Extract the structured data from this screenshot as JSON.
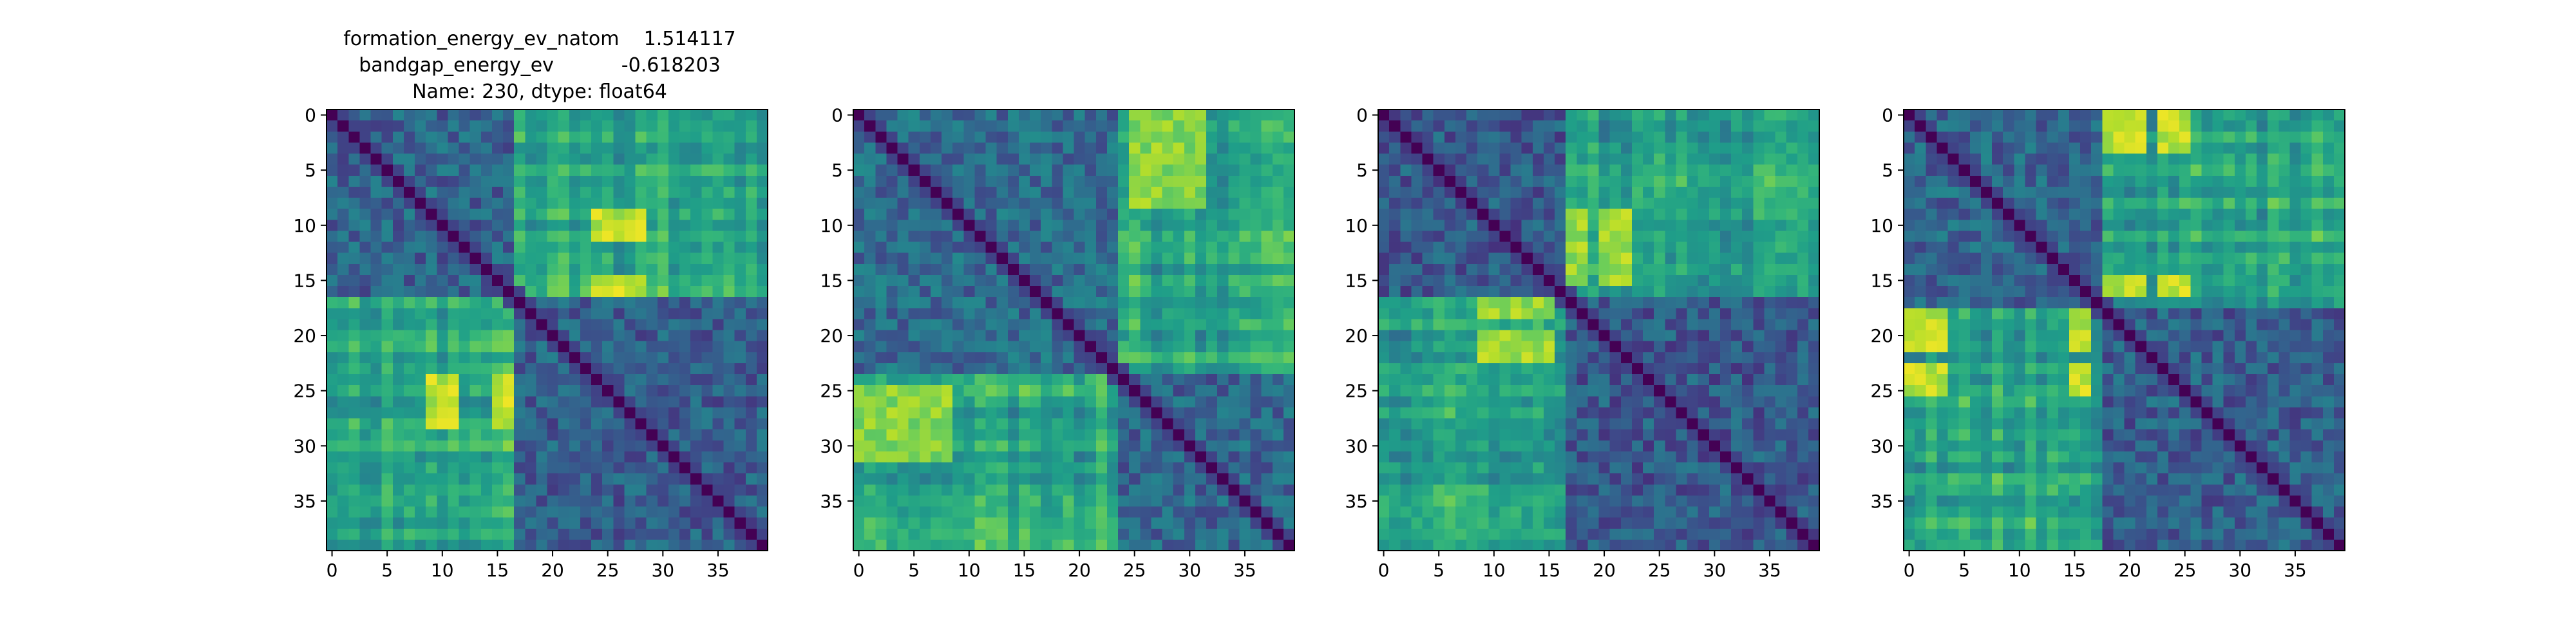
{
  "title_lines": [
    "formation_energy_ev_natom    1.514117",
    "bandgap_energy_ev           -0.618203",
    "Name: 230, dtype: float64"
  ],
  "colormap": {
    "name": "viridis",
    "stops": [
      "#440154",
      "#482878",
      "#3e4989",
      "#31688e",
      "#26828e",
      "#1f9e89",
      "#35b779",
      "#6ece58",
      "#b5de2b",
      "#fde725"
    ]
  },
  "chart_data": [
    {
      "type": "heatmap",
      "size": 40,
      "xticks": [
        0,
        5,
        10,
        15,
        20,
        25,
        30,
        35
      ],
      "yticks": [
        0,
        5,
        10,
        15,
        20,
        25,
        30,
        35
      ],
      "xlim": [
        -0.5,
        39.5
      ],
      "ylim": [
        39.5,
        -0.5
      ],
      "block_boundary": 16.5,
      "block_levels": {
        "within_a": 0.32,
        "within_b": 0.3,
        "cross": 0.6
      },
      "hot_rows": [
        9,
        10,
        11,
        15,
        16
      ],
      "hot_cols": [
        24,
        25,
        26,
        27,
        28
      ],
      "hot_level": 0.9,
      "seed": 11
    },
    {
      "type": "heatmap",
      "size": 40,
      "xticks": [
        0,
        5,
        10,
        15,
        20,
        25,
        30,
        35
      ],
      "yticks": [
        0,
        5,
        10,
        15,
        20,
        25,
        30,
        35
      ],
      "xlim": [
        -0.5,
        39.5
      ],
      "ylim": [
        39.5,
        -0.5
      ],
      "block_boundary": 23.5,
      "block_levels": {
        "within_a": 0.35,
        "within_b": 0.33,
        "cross": 0.6
      },
      "hot_rows": [
        0,
        1,
        2,
        3,
        4,
        5,
        6,
        7,
        8
      ],
      "hot_cols": [
        25,
        26,
        27,
        28,
        29,
        30,
        31
      ],
      "hot_level": 0.82,
      "seed": 23
    },
    {
      "type": "heatmap",
      "size": 40,
      "xticks": [
        0,
        5,
        10,
        15,
        20,
        25,
        30,
        35
      ],
      "yticks": [
        0,
        5,
        10,
        15,
        20,
        25,
        30,
        35
      ],
      "xlim": [
        -0.5,
        39.5
      ],
      "ylim": [
        39.5,
        -0.5
      ],
      "block_boundary": 16.5,
      "block_levels": {
        "within_a": 0.28,
        "within_b": 0.28,
        "cross": 0.58
      },
      "hot_rows": [
        9,
        10,
        11,
        12,
        13,
        14,
        15
      ],
      "hot_cols": [
        17,
        18,
        20,
        21,
        22
      ],
      "hot_level": 0.85,
      "seed": 37
    },
    {
      "type": "heatmap",
      "size": 40,
      "xticks": [
        0,
        5,
        10,
        15,
        20,
        25,
        30,
        35
      ],
      "yticks": [
        0,
        5,
        10,
        15,
        20,
        25,
        30,
        35
      ],
      "xlim": [
        -0.5,
        39.5
      ],
      "ylim": [
        39.5,
        -0.5
      ],
      "block_boundary": 17.5,
      "block_levels": {
        "within_a": 0.33,
        "within_b": 0.3,
        "cross": 0.58
      },
      "hot_rows": [
        0,
        1,
        2,
        3,
        15,
        16
      ],
      "hot_cols": [
        18,
        19,
        20,
        21,
        23,
        24,
        25
      ],
      "hot_level": 0.9,
      "seed": 53
    }
  ]
}
